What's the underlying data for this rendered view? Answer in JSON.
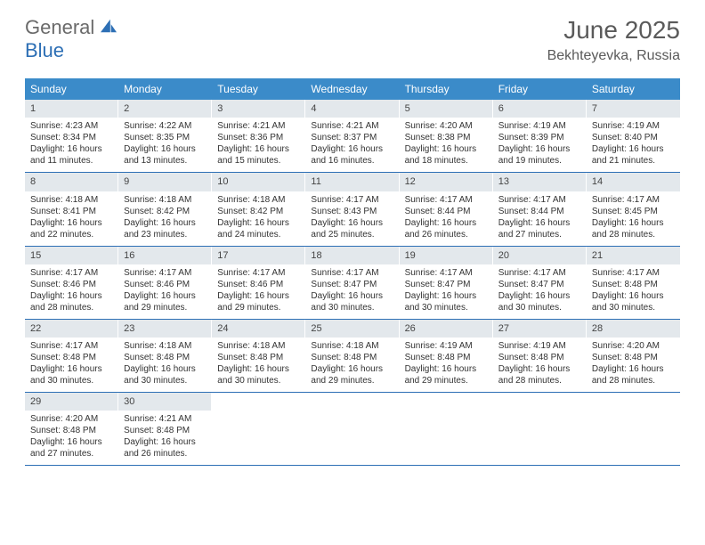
{
  "logo": {
    "text1": "General",
    "text2": "Blue",
    "color1": "#6a6a6a",
    "color2": "#2d6fb5"
  },
  "title": "June 2025",
  "location": "Bekhteyevka, Russia",
  "colors": {
    "header_bg": "#3b8bc9",
    "header_text": "#ffffff",
    "daynum_bg": "#e3e8ec",
    "border": "#2d6fb5",
    "body_text": "#333333",
    "title_text": "#5a5a5a"
  },
  "daysOfWeek": [
    "Sunday",
    "Monday",
    "Tuesday",
    "Wednesday",
    "Thursday",
    "Friday",
    "Saturday"
  ],
  "weeks": [
    [
      {
        "n": "1",
        "sr": "4:23 AM",
        "ss": "8:34 PM",
        "dl": "16 hours and 11 minutes."
      },
      {
        "n": "2",
        "sr": "4:22 AM",
        "ss": "8:35 PM",
        "dl": "16 hours and 13 minutes."
      },
      {
        "n": "3",
        "sr": "4:21 AM",
        "ss": "8:36 PM",
        "dl": "16 hours and 15 minutes."
      },
      {
        "n": "4",
        "sr": "4:21 AM",
        "ss": "8:37 PM",
        "dl": "16 hours and 16 minutes."
      },
      {
        "n": "5",
        "sr": "4:20 AM",
        "ss": "8:38 PM",
        "dl": "16 hours and 18 minutes."
      },
      {
        "n": "6",
        "sr": "4:19 AM",
        "ss": "8:39 PM",
        "dl": "16 hours and 19 minutes."
      },
      {
        "n": "7",
        "sr": "4:19 AM",
        "ss": "8:40 PM",
        "dl": "16 hours and 21 minutes."
      }
    ],
    [
      {
        "n": "8",
        "sr": "4:18 AM",
        "ss": "8:41 PM",
        "dl": "16 hours and 22 minutes."
      },
      {
        "n": "9",
        "sr": "4:18 AM",
        "ss": "8:42 PM",
        "dl": "16 hours and 23 minutes."
      },
      {
        "n": "10",
        "sr": "4:18 AM",
        "ss": "8:42 PM",
        "dl": "16 hours and 24 minutes."
      },
      {
        "n": "11",
        "sr": "4:17 AM",
        "ss": "8:43 PM",
        "dl": "16 hours and 25 minutes."
      },
      {
        "n": "12",
        "sr": "4:17 AM",
        "ss": "8:44 PM",
        "dl": "16 hours and 26 minutes."
      },
      {
        "n": "13",
        "sr": "4:17 AM",
        "ss": "8:44 PM",
        "dl": "16 hours and 27 minutes."
      },
      {
        "n": "14",
        "sr": "4:17 AM",
        "ss": "8:45 PM",
        "dl": "16 hours and 28 minutes."
      }
    ],
    [
      {
        "n": "15",
        "sr": "4:17 AM",
        "ss": "8:46 PM",
        "dl": "16 hours and 28 minutes."
      },
      {
        "n": "16",
        "sr": "4:17 AM",
        "ss": "8:46 PM",
        "dl": "16 hours and 29 minutes."
      },
      {
        "n": "17",
        "sr": "4:17 AM",
        "ss": "8:46 PM",
        "dl": "16 hours and 29 minutes."
      },
      {
        "n": "18",
        "sr": "4:17 AM",
        "ss": "8:47 PM",
        "dl": "16 hours and 30 minutes."
      },
      {
        "n": "19",
        "sr": "4:17 AM",
        "ss": "8:47 PM",
        "dl": "16 hours and 30 minutes."
      },
      {
        "n": "20",
        "sr": "4:17 AM",
        "ss": "8:47 PM",
        "dl": "16 hours and 30 minutes."
      },
      {
        "n": "21",
        "sr": "4:17 AM",
        "ss": "8:48 PM",
        "dl": "16 hours and 30 minutes."
      }
    ],
    [
      {
        "n": "22",
        "sr": "4:17 AM",
        "ss": "8:48 PM",
        "dl": "16 hours and 30 minutes."
      },
      {
        "n": "23",
        "sr": "4:18 AM",
        "ss": "8:48 PM",
        "dl": "16 hours and 30 minutes."
      },
      {
        "n": "24",
        "sr": "4:18 AM",
        "ss": "8:48 PM",
        "dl": "16 hours and 30 minutes."
      },
      {
        "n": "25",
        "sr": "4:18 AM",
        "ss": "8:48 PM",
        "dl": "16 hours and 29 minutes."
      },
      {
        "n": "26",
        "sr": "4:19 AM",
        "ss": "8:48 PM",
        "dl": "16 hours and 29 minutes."
      },
      {
        "n": "27",
        "sr": "4:19 AM",
        "ss": "8:48 PM",
        "dl": "16 hours and 28 minutes."
      },
      {
        "n": "28",
        "sr": "4:20 AM",
        "ss": "8:48 PM",
        "dl": "16 hours and 28 minutes."
      }
    ],
    [
      {
        "n": "29",
        "sr": "4:20 AM",
        "ss": "8:48 PM",
        "dl": "16 hours and 27 minutes."
      },
      {
        "n": "30",
        "sr": "4:21 AM",
        "ss": "8:48 PM",
        "dl": "16 hours and 26 minutes."
      },
      {
        "n": "",
        "empty": true
      },
      {
        "n": "",
        "empty": true
      },
      {
        "n": "",
        "empty": true
      },
      {
        "n": "",
        "empty": true
      },
      {
        "n": "",
        "empty": true
      }
    ]
  ],
  "labels": {
    "sunrise": "Sunrise:",
    "sunset": "Sunset:",
    "daylight": "Daylight:"
  }
}
